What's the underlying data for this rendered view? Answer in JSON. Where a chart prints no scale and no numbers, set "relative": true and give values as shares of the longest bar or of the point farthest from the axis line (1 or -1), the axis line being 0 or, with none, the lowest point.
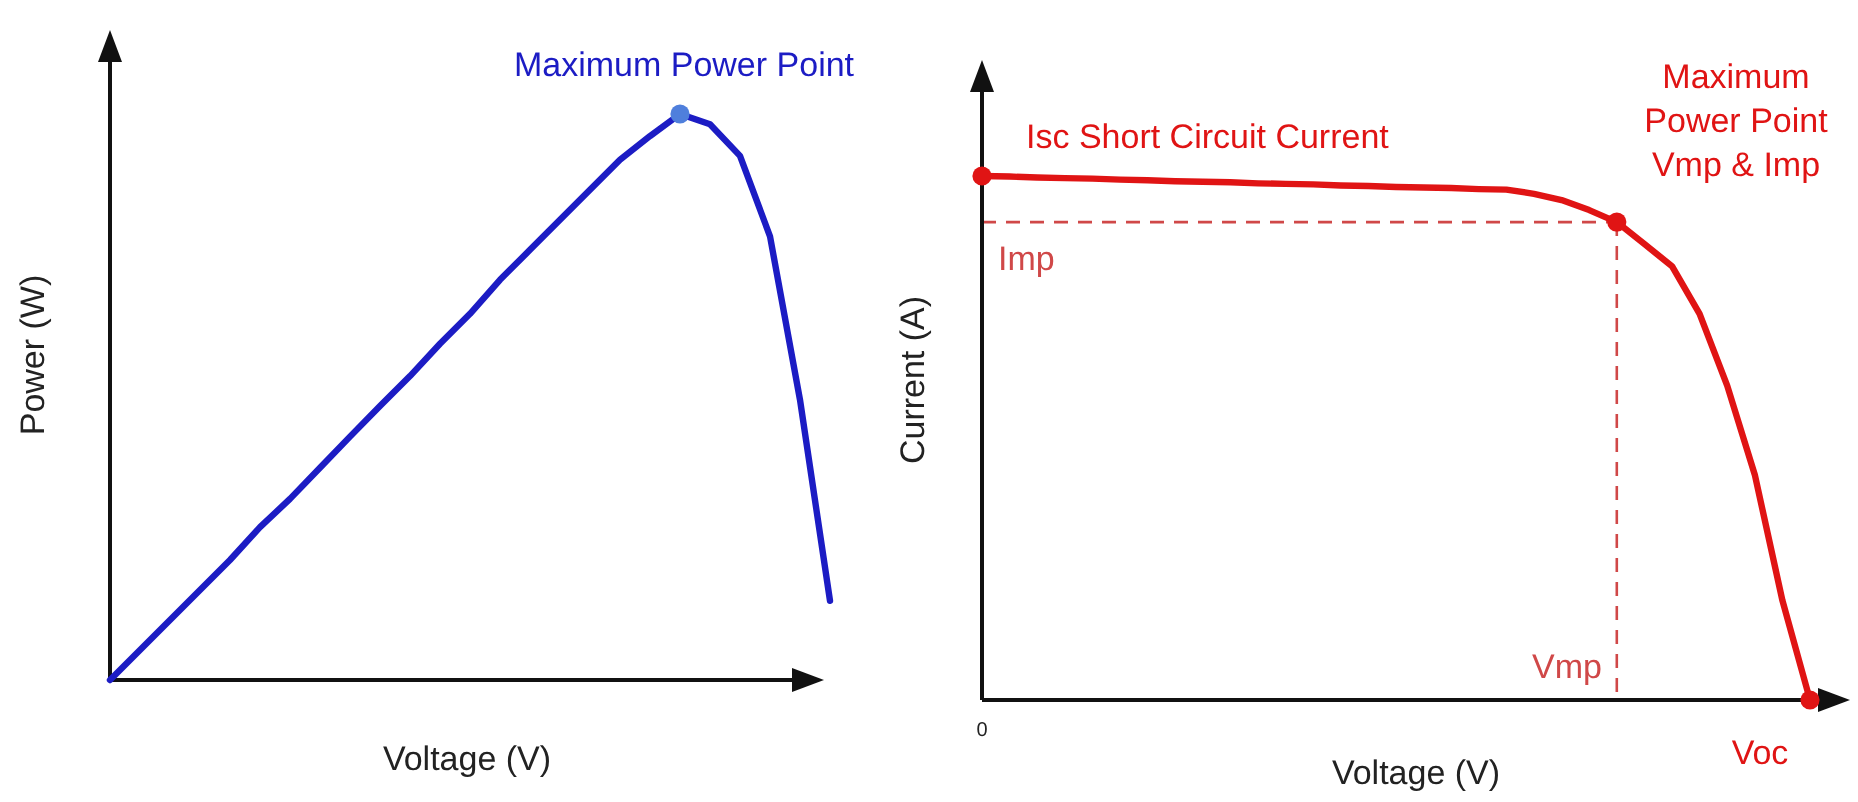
{
  "chart_data": [
    {
      "type": "line",
      "relative": true,
      "xlabel": "Voltage (V)",
      "ylabel": "Power (W)",
      "categories": [
        null,
        null,
        null,
        null,
        null,
        null,
        null,
        null,
        null,
        null,
        null,
        null,
        null,
        null,
        null,
        null,
        null,
        null,
        null,
        null,
        null,
        null,
        null,
        null,
        null
      ],
      "series": [
        {
          "color": "#1c1cc4",
          "values": [
            0,
            0.053,
            0.106,
            0.159,
            0.212,
            0.27,
            0.32,
            0.375,
            0.43,
            0.484,
            0.537,
            0.594,
            0.647,
            0.707,
            0.76,
            0.813,
            0.866,
            0.919,
            0.961,
            1,
            0.982,
            0.926,
            0.784,
            0.495,
            0.14
          ]
        }
      ],
      "annotations": [
        "Maximum Power Point"
      ]
    },
    {
      "type": "line",
      "relative": true,
      "xlabel": "Voltage (V)",
      "ylabel": "Current (A)",
      "categories": [
        null,
        null,
        null,
        null,
        null,
        null,
        null,
        null,
        null,
        null,
        null,
        null,
        null,
        null,
        null,
        null,
        null,
        null,
        null,
        null,
        null,
        null,
        null,
        null,
        null,
        null,
        null,
        null,
        null,
        null,
        null
      ],
      "series": [
        {
          "color": "#e01414",
          "values": [
            1,
            0.999,
            0.997,
            0.996,
            0.995,
            0.993,
            0.992,
            0.99,
            0.989,
            0.988,
            0.986,
            0.985,
            0.984,
            0.982,
            0.981,
            0.979,
            0.978,
            0.977,
            0.975,
            0.974,
            0.966,
            0.954,
            0.935,
            0.912,
            0.87,
            0.828,
            0.737,
            0.6,
            0.43,
            0.19,
            0
          ]
        }
      ],
      "ref_lines": [
        {
          "axis": "y",
          "value": 0.912,
          "label": "Imp",
          "color": "#d04848",
          "line_style": "dashed"
        }
      ],
      "annotations": [
        "Isc Short Circuit Current",
        "Maximum\nPower Point\nVmp & Imp",
        "Voc",
        "0",
        "Vmp"
      ]
    }
  ]
}
